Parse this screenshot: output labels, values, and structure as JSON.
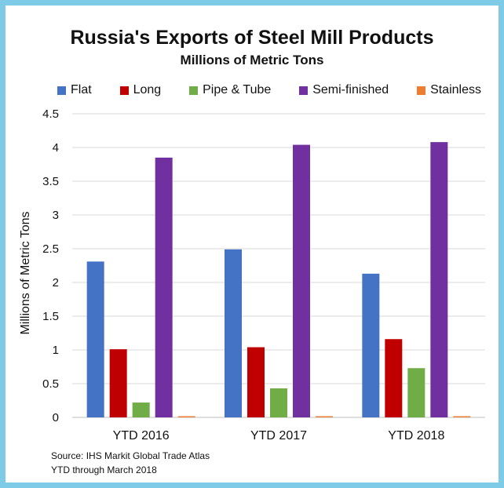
{
  "chart_data": {
    "type": "bar",
    "title": "Russia's Exports of Steel Mill Products",
    "subtitle": "Millions of Metric Tons",
    "ylabel": "Millions of Metric Tons",
    "xlabel": "",
    "ylim": [
      0,
      4.5
    ],
    "yticks": [
      "0",
      "0.5",
      "1",
      "1.5",
      "2",
      "2.5",
      "3",
      "3.5",
      "4",
      "4.5"
    ],
    "grid": true,
    "legend_position": "top",
    "categories": [
      "YTD 2016",
      "YTD 2017",
      "YTD 2018"
    ],
    "series": [
      {
        "name": "Flat",
        "color": "#4472c4",
        "values": [
          2.31,
          2.49,
          2.13
        ]
      },
      {
        "name": "Long",
        "color": "#c00000",
        "values": [
          1.01,
          1.04,
          1.16
        ]
      },
      {
        "name": "Pipe & Tube",
        "color": "#70ad47",
        "values": [
          0.22,
          0.43,
          0.73
        ]
      },
      {
        "name": "Semi-finished",
        "color": "#7030a0",
        "values": [
          3.85,
          4.04,
          4.08
        ]
      },
      {
        "name": "Stainless",
        "color": "#ed7d31",
        "values": [
          0.01,
          0.01,
          0.01
        ]
      }
    ]
  },
  "source": {
    "line1": "Source: IHS Markit Global Trade Atlas",
    "line2": "YTD through March 2018"
  }
}
